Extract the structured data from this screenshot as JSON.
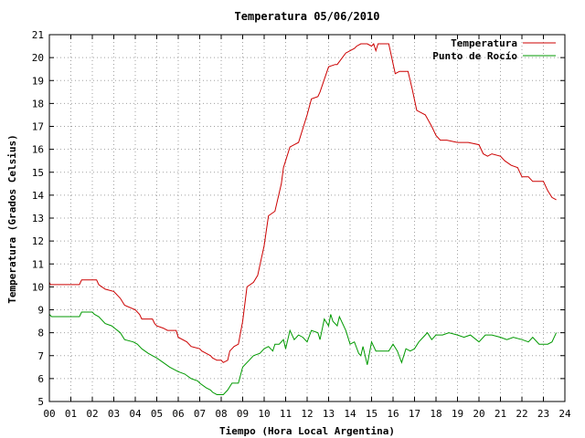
{
  "chart_data": {
    "type": "line",
    "title": "Temperatura 05/06/2010",
    "xlabel": "Tiempo (Hora Local Argentina)",
    "ylabel": "Temperatura (Grados Celsius)",
    "xlim": [
      0,
      24
    ],
    "ylim": [
      5,
      21
    ],
    "x_ticks": [
      "00",
      "01",
      "02",
      "03",
      "04",
      "05",
      "06",
      "07",
      "08",
      "09",
      "10",
      "11",
      "12",
      "13",
      "14",
      "15",
      "16",
      "17",
      "18",
      "19",
      "20",
      "21",
      "22",
      "23",
      "24"
    ],
    "y_ticks": [
      "5",
      "6",
      "7",
      "8",
      "9",
      "10",
      "11",
      "12",
      "13",
      "14",
      "15",
      "16",
      "17",
      "18",
      "19",
      "20",
      "21"
    ],
    "grid": true,
    "legend_position": "top-right",
    "series": [
      {
        "name": "Temperatura",
        "color": "#cc0000",
        "x": [
          0,
          0.05,
          0.1,
          1.4,
          1.5,
          2.2,
          2.3,
          2.6,
          3.0,
          3.3,
          3.5,
          4.0,
          4.2,
          4.3,
          4.8,
          4.9,
          5.0,
          5.3,
          5.5,
          5.9,
          6.0,
          6.4,
          6.6,
          7.0,
          7.1,
          7.3,
          7.5,
          7.6,
          7.8,
          8.0,
          8.1,
          8.3,
          8.4,
          8.6,
          8.8,
          9.0,
          9.2,
          9.5,
          9.7,
          10.0,
          10.2,
          10.5,
          10.8,
          10.9,
          11.2,
          11.4,
          11.6,
          12.0,
          12.2,
          12.5,
          12.6,
          13.0,
          13.3,
          13.4,
          13.8,
          14.0,
          14.2,
          14.3,
          14.5,
          14.8,
          15.0,
          15.1,
          15.2,
          15.3,
          15.4,
          15.5,
          15.6,
          15.8,
          16.1,
          16.3,
          16.5,
          16.7,
          16.9,
          17.1,
          17.3,
          17.5,
          17.8,
          18.0,
          18.2,
          18.5,
          19.0,
          19.5,
          20.0,
          20.2,
          20.4,
          20.6,
          21.0,
          21.2,
          21.5,
          21.8,
          22.0,
          22.3,
          22.5,
          22.8,
          23.0,
          23.2,
          23.4,
          23.6
        ],
        "values": [
          10.2,
          10.1,
          10.1,
          10.1,
          10.3,
          10.3,
          10.1,
          9.9,
          9.8,
          9.5,
          9.2,
          9.0,
          8.8,
          8.6,
          8.6,
          8.4,
          8.3,
          8.2,
          8.1,
          8.1,
          7.8,
          7.6,
          7.4,
          7.3,
          7.2,
          7.1,
          7.0,
          6.9,
          6.8,
          6.8,
          6.7,
          6.8,
          7.2,
          7.4,
          7.5,
          8.5,
          10.0,
          10.2,
          10.5,
          11.8,
          13.1,
          13.3,
          14.5,
          15.2,
          16.1,
          16.2,
          16.3,
          17.5,
          18.2,
          18.3,
          18.5,
          19.6,
          19.7,
          19.7,
          20.2,
          20.3,
          20.4,
          20.5,
          20.6,
          20.6,
          20.5,
          20.6,
          20.3,
          20.6,
          20.6,
          20.6,
          20.6,
          20.6,
          19.3,
          19.4,
          19.4,
          19.4,
          18.6,
          17.7,
          17.6,
          17.5,
          17.0,
          16.6,
          16.4,
          16.4,
          16.3,
          16.3,
          16.2,
          15.8,
          15.7,
          15.8,
          15.7,
          15.5,
          15.3,
          15.2,
          14.8,
          14.8,
          14.6,
          14.6,
          14.6,
          14.2,
          13.9,
          13.8
        ]
      },
      {
        "name": "Punto de Rocío",
        "color": "#009900",
        "x": [
          0,
          0.1,
          1.0,
          1.4,
          1.5,
          2.0,
          2.1,
          2.3,
          2.6,
          2.9,
          3.3,
          3.5,
          3.9,
          4.1,
          4.3,
          4.6,
          4.8,
          5.0,
          5.3,
          5.6,
          5.8,
          6.0,
          6.3,
          6.6,
          6.9,
          7.0,
          7.3,
          7.5,
          7.6,
          7.8,
          8.0,
          8.1,
          8.3,
          8.5,
          8.8,
          9.0,
          9.3,
          9.5,
          9.8,
          10.0,
          10.2,
          10.4,
          10.5,
          10.7,
          10.9,
          11.0,
          11.2,
          11.4,
          11.6,
          11.8,
          12.0,
          12.2,
          12.5,
          12.6,
          12.8,
          13.0,
          13.1,
          13.2,
          13.4,
          13.5,
          13.8,
          14.0,
          14.2,
          14.4,
          14.5,
          14.6,
          14.8,
          15.0,
          15.2,
          15.4,
          15.6,
          15.8,
          16.0,
          16.2,
          16.4,
          16.6,
          16.8,
          17.0,
          17.2,
          17.4,
          17.6,
          17.8,
          18.0,
          18.3,
          18.6,
          19.0,
          19.3,
          19.6,
          20.0,
          20.3,
          20.6,
          21.0,
          21.3,
          21.6,
          22.0,
          22.3,
          22.5,
          22.8,
          23.0,
          23.2,
          23.4,
          23.6
        ],
        "values": [
          8.8,
          8.7,
          8.7,
          8.7,
          8.9,
          8.9,
          8.8,
          8.7,
          8.4,
          8.3,
          8.0,
          7.7,
          7.6,
          7.5,
          7.3,
          7.1,
          7.0,
          6.9,
          6.7,
          6.5,
          6.4,
          6.3,
          6.2,
          6.0,
          5.9,
          5.8,
          5.6,
          5.5,
          5.4,
          5.3,
          5.3,
          5.3,
          5.5,
          5.8,
          5.8,
          6.5,
          6.8,
          7.0,
          7.1,
          7.3,
          7.4,
          7.2,
          7.5,
          7.5,
          7.7,
          7.3,
          8.1,
          7.7,
          7.9,
          7.8,
          7.6,
          8.1,
          8.0,
          7.7,
          8.6,
          8.3,
          8.8,
          8.5,
          8.3,
          8.7,
          8.1,
          7.5,
          7.6,
          7.1,
          7.0,
          7.4,
          6.6,
          7.6,
          7.2,
          7.2,
          7.2,
          7.2,
          7.5,
          7.2,
          6.7,
          7.3,
          7.2,
          7.3,
          7.6,
          7.8,
          8.0,
          7.7,
          7.9,
          7.9,
          8.0,
          7.9,
          7.8,
          7.9,
          7.6,
          7.9,
          7.9,
          7.8,
          7.7,
          7.8,
          7.7,
          7.6,
          7.8,
          7.5,
          7.5,
          7.5,
          7.6,
          8.0
        ]
      }
    ]
  }
}
